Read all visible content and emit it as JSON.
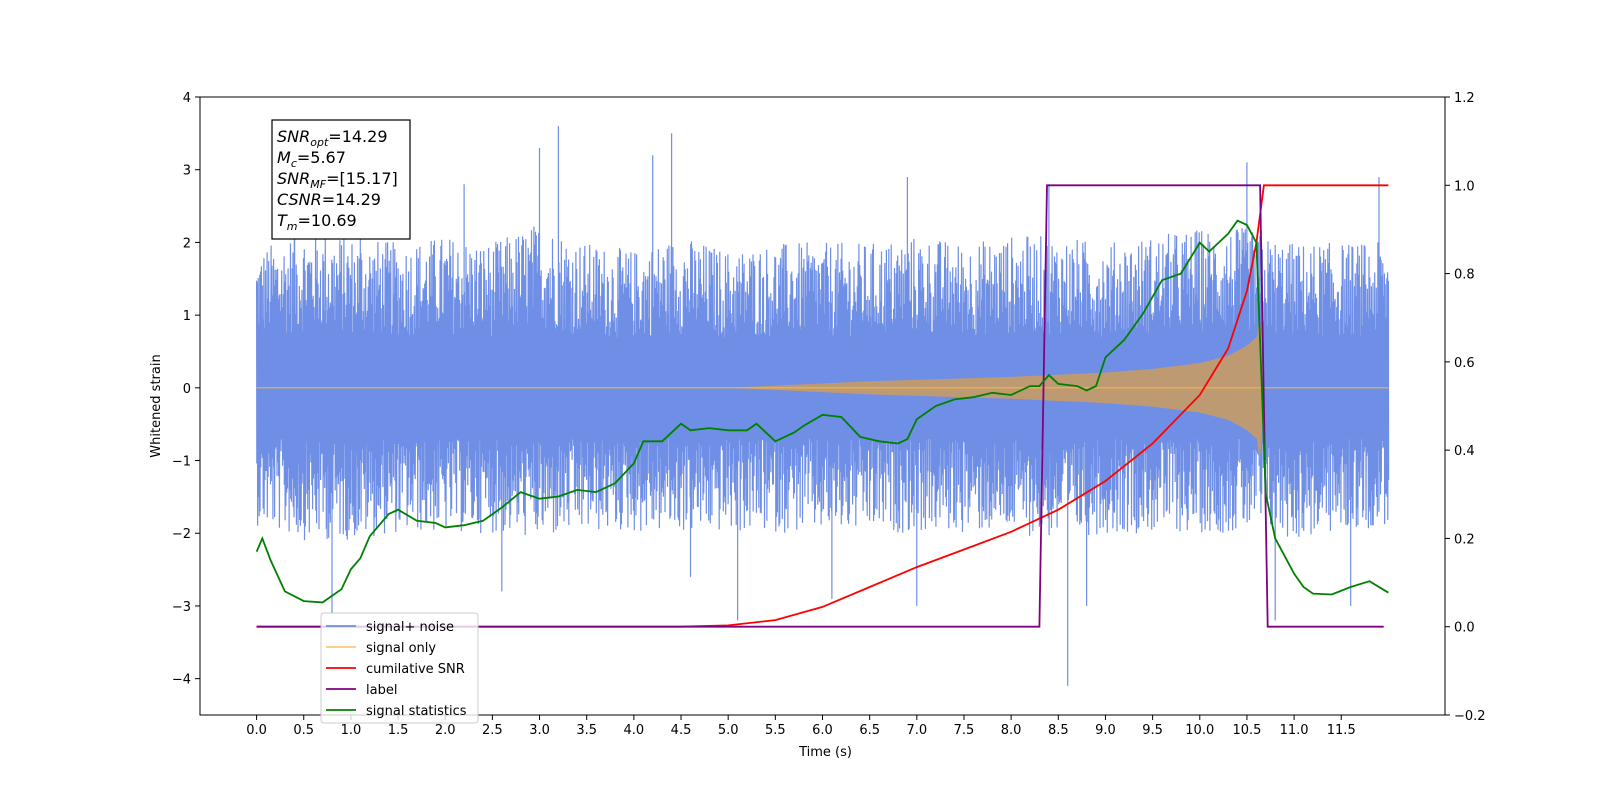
{
  "chart_data": {
    "type": "line",
    "xlabel": "Time (s)",
    "ylabel": "Whitened strain",
    "xlim": [
      -0.6,
      12.6
    ],
    "ylim": [
      -4.5,
      4
    ],
    "y2lim": [
      -0.2,
      1.2
    ],
    "x_ticks": [
      "0.0",
      "0.5",
      "1.0",
      "1.5",
      "2.0",
      "2.5",
      "3.0",
      "3.5",
      "4.0",
      "4.5",
      "5.0",
      "5.5",
      "6.0",
      "6.5",
      "7.0",
      "7.5",
      "8.0",
      "8.5",
      "9.0",
      "9.5",
      "10.0",
      "10.5",
      "11.0",
      "11.5"
    ],
    "y_ticks": [
      "4",
      "3",
      "2",
      "1",
      "0",
      "−1",
      "−2",
      "−3",
      "−4"
    ],
    "y2_ticks": [
      "1.2",
      "1.0",
      "0.8",
      "0.6",
      "0.4",
      "0.2",
      "0.0",
      "−0.2"
    ],
    "grid": false,
    "legend_position": "lower-left",
    "annotation": {
      "lines": [
        {
          "sym": "SNR",
          "sub": "opt",
          "text": "=14.29"
        },
        {
          "sym": "M",
          "sub": "c",
          "text": "=5.67"
        },
        {
          "sym": "SNR",
          "sub": "MF",
          "text": "=[15.17]"
        },
        {
          "sym": "CSNR",
          "sub": "",
          "text": "=14.29"
        },
        {
          "sym": "T",
          "sub": "m",
          "text": "=10.69"
        }
      ]
    },
    "series": [
      {
        "name": "signal+ noise",
        "color": "#6f8fe6",
        "axis": "left",
        "x_range": [
          0,
          12.0
        ],
        "envelope_upper": [
          [
            0.0,
            1.9
          ],
          [
            0.5,
            2.2
          ],
          [
            1.0,
            2.1
          ],
          [
            1.5,
            2.0
          ],
          [
            2.0,
            2.1
          ],
          [
            2.5,
            2.0
          ],
          [
            3.0,
            2.3
          ],
          [
            3.5,
            2.0
          ],
          [
            4.0,
            1.9
          ],
          [
            4.5,
            2.1
          ],
          [
            5.0,
            1.9
          ],
          [
            5.5,
            2.0
          ],
          [
            6.0,
            2.0
          ],
          [
            6.5,
            2.0
          ],
          [
            7.0,
            2.1
          ],
          [
            7.5,
            2.0
          ],
          [
            8.0,
            2.1
          ],
          [
            8.5,
            2.1
          ],
          [
            9.0,
            2.0
          ],
          [
            9.5,
            2.1
          ],
          [
            10.0,
            2.2
          ],
          [
            10.5,
            2.2
          ],
          [
            10.7,
            2.1
          ],
          [
            11.0,
            2.0
          ],
          [
            11.5,
            2.0
          ],
          [
            12.0,
            2.0
          ]
        ],
        "envelope_lower": [
          [
            0.0,
            -1.9
          ],
          [
            0.5,
            -2.1
          ],
          [
            1.0,
            -2.1
          ],
          [
            1.5,
            -2.0
          ],
          [
            2.0,
            -2.0
          ],
          [
            2.5,
            -2.0
          ],
          [
            3.0,
            -2.1
          ],
          [
            3.5,
            -2.0
          ],
          [
            4.0,
            -2.0
          ],
          [
            4.5,
            -2.0
          ],
          [
            5.0,
            -2.0
          ],
          [
            5.5,
            -2.0
          ],
          [
            6.0,
            -2.0
          ],
          [
            6.5,
            -2.0
          ],
          [
            7.0,
            -2.0
          ],
          [
            7.5,
            -2.0
          ],
          [
            8.0,
            -2.0
          ],
          [
            8.5,
            -2.1
          ],
          [
            9.0,
            -2.0
          ],
          [
            9.5,
            -2.0
          ],
          [
            10.0,
            -2.0
          ],
          [
            10.5,
            -2.0
          ],
          [
            10.7,
            -2.0
          ],
          [
            11.0,
            -2.1
          ],
          [
            11.5,
            -2.0
          ],
          [
            12.0,
            -1.9
          ]
        ],
        "spikes": [
          [
            0.4,
            2.8
          ],
          [
            0.8,
            -3.1
          ],
          [
            1.1,
            2.6
          ],
          [
            2.2,
            2.8
          ],
          [
            2.6,
            -2.8
          ],
          [
            3.0,
            3.3
          ],
          [
            3.2,
            3.6
          ],
          [
            4.2,
            3.2
          ],
          [
            4.4,
            3.5
          ],
          [
            4.6,
            -2.6
          ],
          [
            5.1,
            -3.2
          ],
          [
            6.1,
            -2.9
          ],
          [
            6.9,
            2.9
          ],
          [
            7.0,
            -3.0
          ],
          [
            8.4,
            2.8
          ],
          [
            8.6,
            -4.1
          ],
          [
            8.8,
            -3.0
          ],
          [
            10.5,
            3.1
          ],
          [
            10.8,
            -3.2
          ],
          [
            11.6,
            -3.0
          ],
          [
            11.9,
            2.9
          ]
        ]
      },
      {
        "name": "signal only",
        "color": "#f5b342",
        "fill_color": "#c29b6b",
        "axis": "left",
        "envelope": [
          [
            0.0,
            0.0
          ],
          [
            5.0,
            0.0
          ],
          [
            5.5,
            0.03
          ],
          [
            6.0,
            0.06
          ],
          [
            6.5,
            0.09
          ],
          [
            7.0,
            0.11
          ],
          [
            7.5,
            0.13
          ],
          [
            8.0,
            0.15
          ],
          [
            8.5,
            0.18
          ],
          [
            9.0,
            0.21
          ],
          [
            9.5,
            0.26
          ],
          [
            10.0,
            0.34
          ],
          [
            10.3,
            0.44
          ],
          [
            10.5,
            0.58
          ],
          [
            10.62,
            0.72
          ],
          [
            10.64,
            1.2
          ],
          [
            10.68,
            0.0
          ],
          [
            12.0,
            0.0
          ]
        ]
      },
      {
        "name": "cumilative SNR",
        "color": "#ff0000",
        "axis": "right",
        "points": [
          [
            0.0,
            0.0
          ],
          [
            4.5,
            0.0
          ],
          [
            5.0,
            0.003
          ],
          [
            5.5,
            0.015
          ],
          [
            6.0,
            0.045
          ],
          [
            6.5,
            0.09
          ],
          [
            7.0,
            0.135
          ],
          [
            7.5,
            0.175
          ],
          [
            8.0,
            0.215
          ],
          [
            8.5,
            0.265
          ],
          [
            9.0,
            0.33
          ],
          [
            9.5,
            0.415
          ],
          [
            10.0,
            0.525
          ],
          [
            10.3,
            0.63
          ],
          [
            10.5,
            0.76
          ],
          [
            10.6,
            0.87
          ],
          [
            10.68,
            1.0
          ],
          [
            11.0,
            1.0
          ],
          [
            11.5,
            1.0
          ],
          [
            12.0,
            1.0
          ]
        ]
      },
      {
        "name": "label",
        "color": "#800080",
        "axis": "right",
        "points": [
          [
            0.0,
            0.0
          ],
          [
            8.3,
            0.0
          ],
          [
            8.38,
            1.0
          ],
          [
            10.64,
            1.0
          ],
          [
            10.72,
            0.0
          ],
          [
            11.95,
            0.0
          ]
        ]
      },
      {
        "name": "signal statistics",
        "color": "#008000",
        "axis": "right",
        "points": [
          [
            0.0,
            0.17
          ],
          [
            0.06,
            0.2
          ],
          [
            0.15,
            0.15
          ],
          [
            0.3,
            0.08
          ],
          [
            0.5,
            0.058
          ],
          [
            0.7,
            0.055
          ],
          [
            0.9,
            0.085
          ],
          [
            1.0,
            0.13
          ],
          [
            1.1,
            0.155
          ],
          [
            1.2,
            0.205
          ],
          [
            1.3,
            0.23
          ],
          [
            1.4,
            0.255
          ],
          [
            1.5,
            0.265
          ],
          [
            1.7,
            0.24
          ],
          [
            1.9,
            0.235
          ],
          [
            2.0,
            0.225
          ],
          [
            2.2,
            0.23
          ],
          [
            2.4,
            0.24
          ],
          [
            2.6,
            0.27
          ],
          [
            2.8,
            0.305
          ],
          [
            3.0,
            0.29
          ],
          [
            3.2,
            0.295
          ],
          [
            3.4,
            0.31
          ],
          [
            3.6,
            0.305
          ],
          [
            3.8,
            0.325
          ],
          [
            4.0,
            0.37
          ],
          [
            4.1,
            0.42
          ],
          [
            4.3,
            0.42
          ],
          [
            4.5,
            0.46
          ],
          [
            4.6,
            0.445
          ],
          [
            4.8,
            0.45
          ],
          [
            5.0,
            0.445
          ],
          [
            5.2,
            0.445
          ],
          [
            5.3,
            0.46
          ],
          [
            5.5,
            0.42
          ],
          [
            5.7,
            0.44
          ],
          [
            5.8,
            0.455
          ],
          [
            6.0,
            0.48
          ],
          [
            6.2,
            0.475
          ],
          [
            6.4,
            0.43
          ],
          [
            6.6,
            0.42
          ],
          [
            6.8,
            0.415
          ],
          [
            6.9,
            0.425
          ],
          [
            7.0,
            0.47
          ],
          [
            7.2,
            0.5
          ],
          [
            7.4,
            0.515
          ],
          [
            7.6,
            0.52
          ],
          [
            7.8,
            0.53
          ],
          [
            8.0,
            0.525
          ],
          [
            8.2,
            0.545
          ],
          [
            8.3,
            0.545
          ],
          [
            8.4,
            0.57
          ],
          [
            8.5,
            0.55
          ],
          [
            8.7,
            0.545
          ],
          [
            8.8,
            0.535
          ],
          [
            8.9,
            0.545
          ],
          [
            9.0,
            0.61
          ],
          [
            9.2,
            0.65
          ],
          [
            9.4,
            0.71
          ],
          [
            9.6,
            0.785
          ],
          [
            9.8,
            0.8
          ],
          [
            10.0,
            0.87
          ],
          [
            10.1,
            0.85
          ],
          [
            10.3,
            0.89
          ],
          [
            10.4,
            0.92
          ],
          [
            10.5,
            0.91
          ],
          [
            10.6,
            0.87
          ],
          [
            10.7,
            0.3
          ],
          [
            10.8,
            0.2
          ],
          [
            10.9,
            0.16
          ],
          [
            11.0,
            0.12
          ],
          [
            11.1,
            0.09
          ],
          [
            11.2,
            0.075
          ],
          [
            11.4,
            0.073
          ],
          [
            11.6,
            0.09
          ],
          [
            11.8,
            0.103
          ],
          [
            12.0,
            0.077
          ]
        ]
      }
    ]
  }
}
